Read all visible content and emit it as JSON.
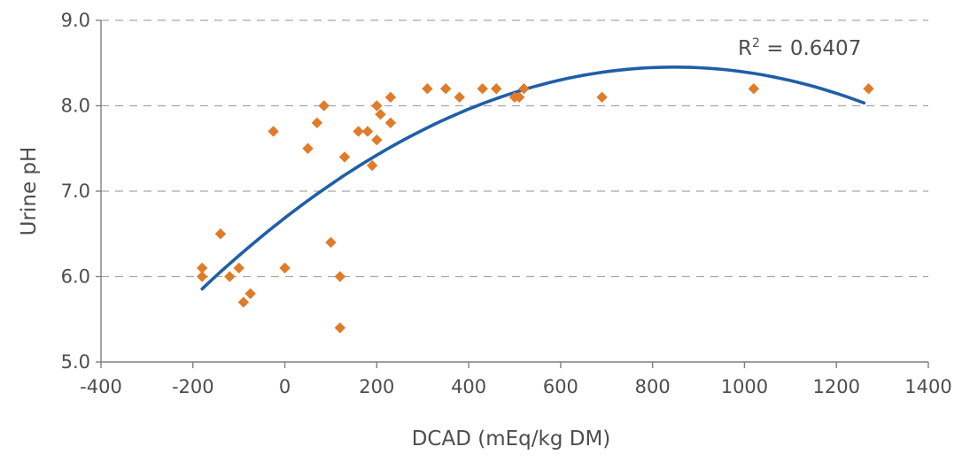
{
  "chart_data": {
    "type": "scatter",
    "title": "",
    "xlabel": "DCAD (mEq/kg DM)",
    "ylabel": "Urine pH",
    "xlim": [
      -400,
      1400
    ],
    "ylim": [
      5.0,
      9.0
    ],
    "xticks": [
      -400,
      -200,
      0,
      200,
      400,
      600,
      800,
      1000,
      1200,
      1400
    ],
    "xtick_labels": [
      "-400",
      "-200",
      "0",
      "200",
      "400",
      "600",
      "800",
      "1000",
      "1200",
      "1400"
    ],
    "yticks": [
      5.0,
      6.0,
      7.0,
      8.0,
      9.0
    ],
    "ytick_labels": [
      "5.0",
      "6.0",
      "7.0",
      "8.0",
      "9.0"
    ],
    "grid": "horizontal dashed",
    "marker_color": "#e07b28",
    "marker_shape": "diamond",
    "points": [
      {
        "x": -180,
        "y": 6.1
      },
      {
        "x": -180,
        "y": 6.0
      },
      {
        "x": -140,
        "y": 6.5
      },
      {
        "x": -120,
        "y": 6.0
      },
      {
        "x": -100,
        "y": 6.1
      },
      {
        "x": -90,
        "y": 5.7
      },
      {
        "x": -75,
        "y": 5.8
      },
      {
        "x": -25,
        "y": 7.7
      },
      {
        "x": 0,
        "y": 6.1
      },
      {
        "x": 50,
        "y": 7.5
      },
      {
        "x": 70,
        "y": 7.8
      },
      {
        "x": 85,
        "y": 8.0
      },
      {
        "x": 100,
        "y": 6.4
      },
      {
        "x": 120,
        "y": 6.0
      },
      {
        "x": 120,
        "y": 5.4
      },
      {
        "x": 130,
        "y": 7.4
      },
      {
        "x": 160,
        "y": 7.7
      },
      {
        "x": 180,
        "y": 7.7
      },
      {
        "x": 190,
        "y": 7.3
      },
      {
        "x": 200,
        "y": 8.0
      },
      {
        "x": 200,
        "y": 7.6
      },
      {
        "x": 208,
        "y": 7.9
      },
      {
        "x": 230,
        "y": 8.1
      },
      {
        "x": 230,
        "y": 7.8
      },
      {
        "x": 310,
        "y": 8.2
      },
      {
        "x": 350,
        "y": 8.2
      },
      {
        "x": 380,
        "y": 8.1
      },
      {
        "x": 430,
        "y": 8.2
      },
      {
        "x": 460,
        "y": 8.2
      },
      {
        "x": 500,
        "y": 8.1
      },
      {
        "x": 510,
        "y": 8.1
      },
      {
        "x": 520,
        "y": 8.2
      },
      {
        "x": 690,
        "y": 8.1
      },
      {
        "x": 1020,
        "y": 8.2
      },
      {
        "x": 1270,
        "y": 8.2
      }
    ],
    "trendline": {
      "type": "polynomial",
      "order": 2,
      "color": "#1f5fa8",
      "x_range": [
        -180,
        1260
      ],
      "samples": [
        {
          "x": -180,
          "y": 5.79
        },
        {
          "x": 0,
          "y": 6.71
        },
        {
          "x": 200,
          "y": 7.49
        },
        {
          "x": 400,
          "y": 8.02
        },
        {
          "x": 600,
          "y": 8.31
        },
        {
          "x": 790,
          "y": 8.37
        },
        {
          "x": 1000,
          "y": 8.29
        },
        {
          "x": 1260,
          "y": 8.12
        }
      ]
    },
    "annotation": {
      "text_base": "R",
      "text_sup": "2",
      "text_rest": " = 0.6407",
      "anchor_x": 1100,
      "anchor_y": 8.68
    }
  }
}
